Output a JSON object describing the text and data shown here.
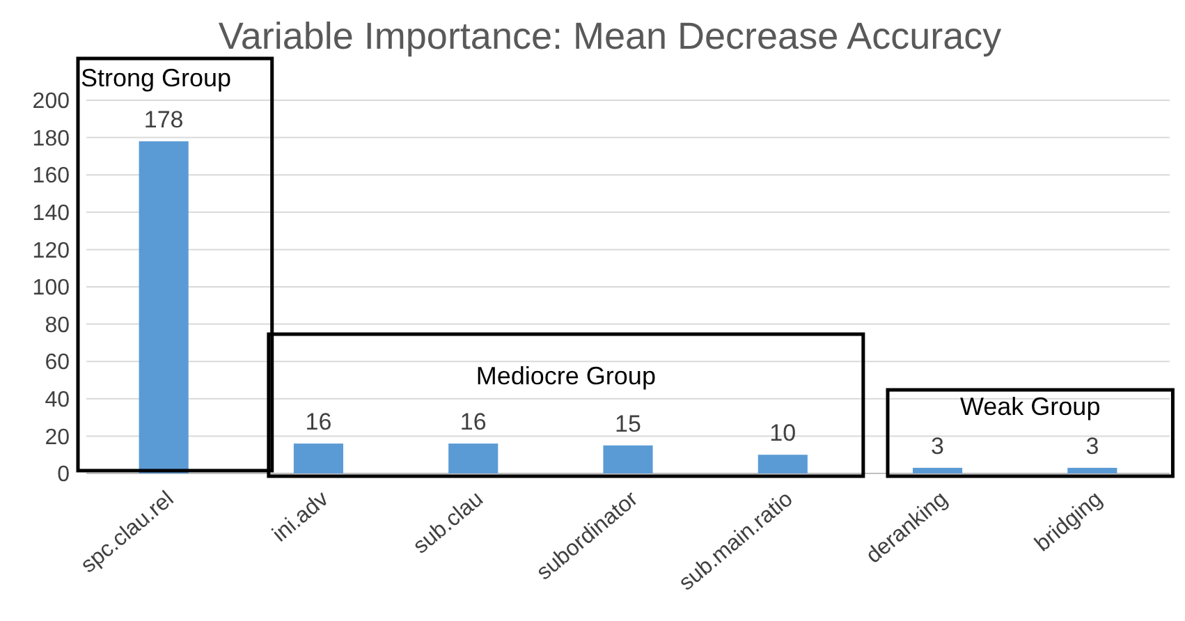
{
  "chart_data": {
    "type": "bar",
    "title": "Variable Importance: Mean Decrease Accuracy",
    "categories": [
      "spc.clau.rel",
      "ini.adv",
      "sub.clau",
      "subordinator",
      "sub.main.ratio",
      "deranking",
      "bridging"
    ],
    "values": [
      178,
      16,
      16,
      15,
      10,
      3,
      3
    ],
    "color": "#5b9bd5",
    "data_labels": true,
    "ylim": [
      0,
      200
    ],
    "yticks": [
      0,
      20,
      40,
      60,
      80,
      100,
      120,
      140,
      160,
      180,
      200
    ],
    "grid": "y",
    "annotations": [
      "Strong Group",
      "Mediocre Group",
      "Weak Group"
    ]
  }
}
